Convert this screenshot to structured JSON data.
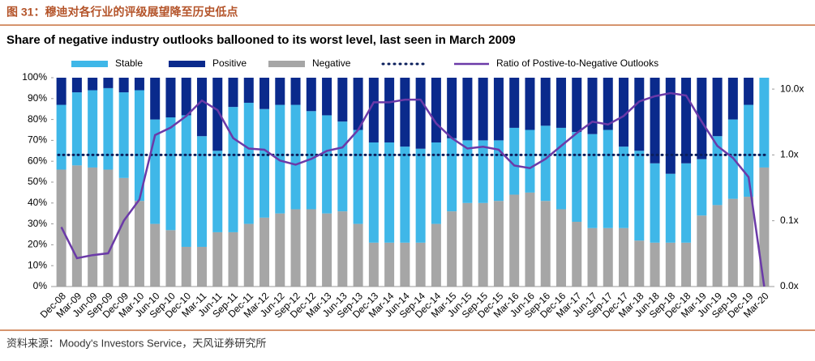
{
  "header": "图 31：穆迪对各行业的评级展望降至历史低点",
  "source": "资料来源：Moody's Investors Service，天风证券研究所",
  "chart_data": {
    "type": "bar",
    "stacked": true,
    "title": "Share of negative industry outlooks ballooned to its worst level, last seen in March 2009",
    "categories": [
      "Dec-08",
      "Mar-09",
      "Jun-09",
      "Sep-09",
      "Dec-09",
      "Mar-10",
      "Jun-10",
      "Sep-10",
      "Dec-10",
      "Mar-11",
      "Jun-11",
      "Sep-11",
      "Dec-11",
      "Mar-12",
      "Jun-12",
      "Sep-12",
      "Dec-12",
      "Mar-13",
      "Jun-13",
      "Sep-13",
      "Dec-13",
      "Mar-14",
      "Jun-14",
      "Sep-14",
      "Dec-14",
      "Mar-15",
      "Jun-15",
      "Sep-15",
      "Dec-15",
      "Mar-16",
      "Jun-16",
      "Sep-16",
      "Dec-16",
      "Mar-17",
      "Jun-17",
      "Sep-17",
      "Dec-17",
      "Mar-18",
      "Jun-18",
      "Sep-18",
      "Dec-18",
      "Mar-19",
      "Jun-19",
      "Sep-19",
      "Dec-19",
      "Mar-20"
    ],
    "series": [
      {
        "name": "Negative",
        "color": "#a6a6a6",
        "values": [
          56,
          58,
          57,
          56,
          52,
          41,
          30,
          27,
          19,
          19,
          26,
          26,
          30,
          33,
          35,
          37,
          37,
          35,
          36,
          30,
          21,
          21,
          21,
          21,
          30,
          36,
          40,
          40,
          41,
          44,
          45,
          41,
          37,
          31,
          28,
          28,
          28,
          22,
          21,
          21,
          21,
          34,
          39,
          42,
          43,
          57
        ]
      },
      {
        "name": "Stable",
        "color": "#3fb7e8",
        "values": [
          31,
          35,
          37,
          39,
          41,
          53,
          50,
          54,
          63,
          53,
          39,
          60,
          58,
          52,
          52,
          50,
          47,
          47,
          43,
          45,
          48,
          48,
          46,
          45,
          39,
          35,
          30,
          30,
          29,
          32,
          30,
          36,
          39,
          43,
          45,
          47,
          39,
          43,
          38,
          33,
          38,
          27,
          33,
          38,
          44,
          43
        ]
      },
      {
        "name": "Positive",
        "color": "#0a2a8c",
        "values": [
          13,
          7,
          6,
          5,
          7,
          6,
          20,
          19,
          18,
          28,
          35,
          14,
          12,
          15,
          13,
          13,
          16,
          18,
          21,
          25,
          31,
          31,
          33,
          34,
          31,
          29,
          30,
          30,
          30,
          24,
          25,
          23,
          24,
          26,
          27,
          25,
          33,
          35,
          41,
          46,
          41,
          39,
          28,
          20,
          13,
          0
        ]
      },
      {
        "name": "Ratio of Postive-to-Negative Outlooks",
        "type": "line",
        "axis": "y2",
        "color": "#6b3aa8",
        "values": [
          0.08,
          0.027,
          0.03,
          0.032,
          0.1,
          0.21,
          2.0,
          2.6,
          3.9,
          6.7,
          4.8,
          1.8,
          1.25,
          1.2,
          0.82,
          0.71,
          0.87,
          1.15,
          1.3,
          2.4,
          6.3,
          6.3,
          6.9,
          6.9,
          3.0,
          1.8,
          1.25,
          1.33,
          1.2,
          0.69,
          0.63,
          0.87,
          1.37,
          2.15,
          3.2,
          2.9,
          3.9,
          6.5,
          7.8,
          8.7,
          8.0,
          3.2,
          1.37,
          0.9,
          0.46,
          0.01
        ]
      }
    ],
    "reference_line": {
      "value": 1,
      "axis": "y2",
      "color": "#0b1f5c"
    },
    "ylim": [
      0,
      100
    ],
    "yticks": [
      {
        "value": 0,
        "label": "0%"
      },
      {
        "value": 10,
        "label": "10%"
      },
      {
        "value": 20,
        "label": "20%"
      },
      {
        "value": 30,
        "label": "30%"
      },
      {
        "value": 40,
        "label": "40%"
      },
      {
        "value": 50,
        "label": "50%"
      },
      {
        "value": 60,
        "label": "60%"
      },
      {
        "value": 70,
        "label": "70%"
      },
      {
        "value": 80,
        "label": "80%"
      },
      {
        "value": 90,
        "label": "90%"
      },
      {
        "value": 100,
        "label": "100%"
      }
    ],
    "y2scale": "log",
    "y2lim": [
      0.01,
      14.9
    ],
    "y2ticks": [
      {
        "value": 0.01,
        "label": "0.0x"
      },
      {
        "value": 0.1,
        "label": "0.1x"
      },
      {
        "value": 1,
        "label": "1.0x"
      },
      {
        "value": 10,
        "label": "10.0x"
      }
    ]
  }
}
